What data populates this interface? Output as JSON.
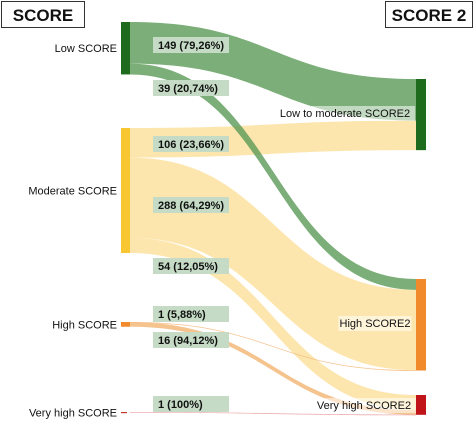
{
  "headers": {
    "left": "SCORE",
    "right": "SCORE 2"
  },
  "sources": [
    {
      "id": "low",
      "label": "Low SCORE",
      "color": "#1e6b1e"
    },
    {
      "id": "moderate",
      "label": "Moderate SCORE",
      "color": "#f7c631"
    },
    {
      "id": "high",
      "label": "High SCORE",
      "color": "#f08a2a"
    },
    {
      "id": "veryhigh",
      "label": "Very high SCORE",
      "color": "#c0392b"
    }
  ],
  "targets": [
    {
      "id": "lowmod",
      "label": "Low to moderate SCORE2",
      "color": "#1e6b1e"
    },
    {
      "id": "high",
      "label": "High SCORE2",
      "color": "#f08a2a"
    },
    {
      "id": "veryhigh",
      "label": "Very high SCORE2",
      "color": "#c0141a"
    }
  ],
  "flows": [
    {
      "from": "low",
      "to": "lowmod",
      "value": 149,
      "label": "149 (79,26%)"
    },
    {
      "from": "low",
      "to": "high",
      "value": 39,
      "label": "39 (20,74%)"
    },
    {
      "from": "moderate",
      "to": "lowmod",
      "value": 106,
      "label": "106 (23,66%)"
    },
    {
      "from": "moderate",
      "to": "high",
      "value": 288,
      "label": "288 (64,29%)"
    },
    {
      "from": "moderate",
      "to": "veryhigh",
      "value": 54,
      "label": "54 (12,05%)"
    },
    {
      "from": "high",
      "to": "high",
      "value": 1,
      "label": "1 (5,88%)"
    },
    {
      "from": "high",
      "to": "veryhigh",
      "value": 16,
      "label": "16 (94,12%)"
    },
    {
      "from": "veryhigh",
      "to": "veryhigh",
      "value": 1,
      "label": "1 (100%)"
    }
  ]
}
